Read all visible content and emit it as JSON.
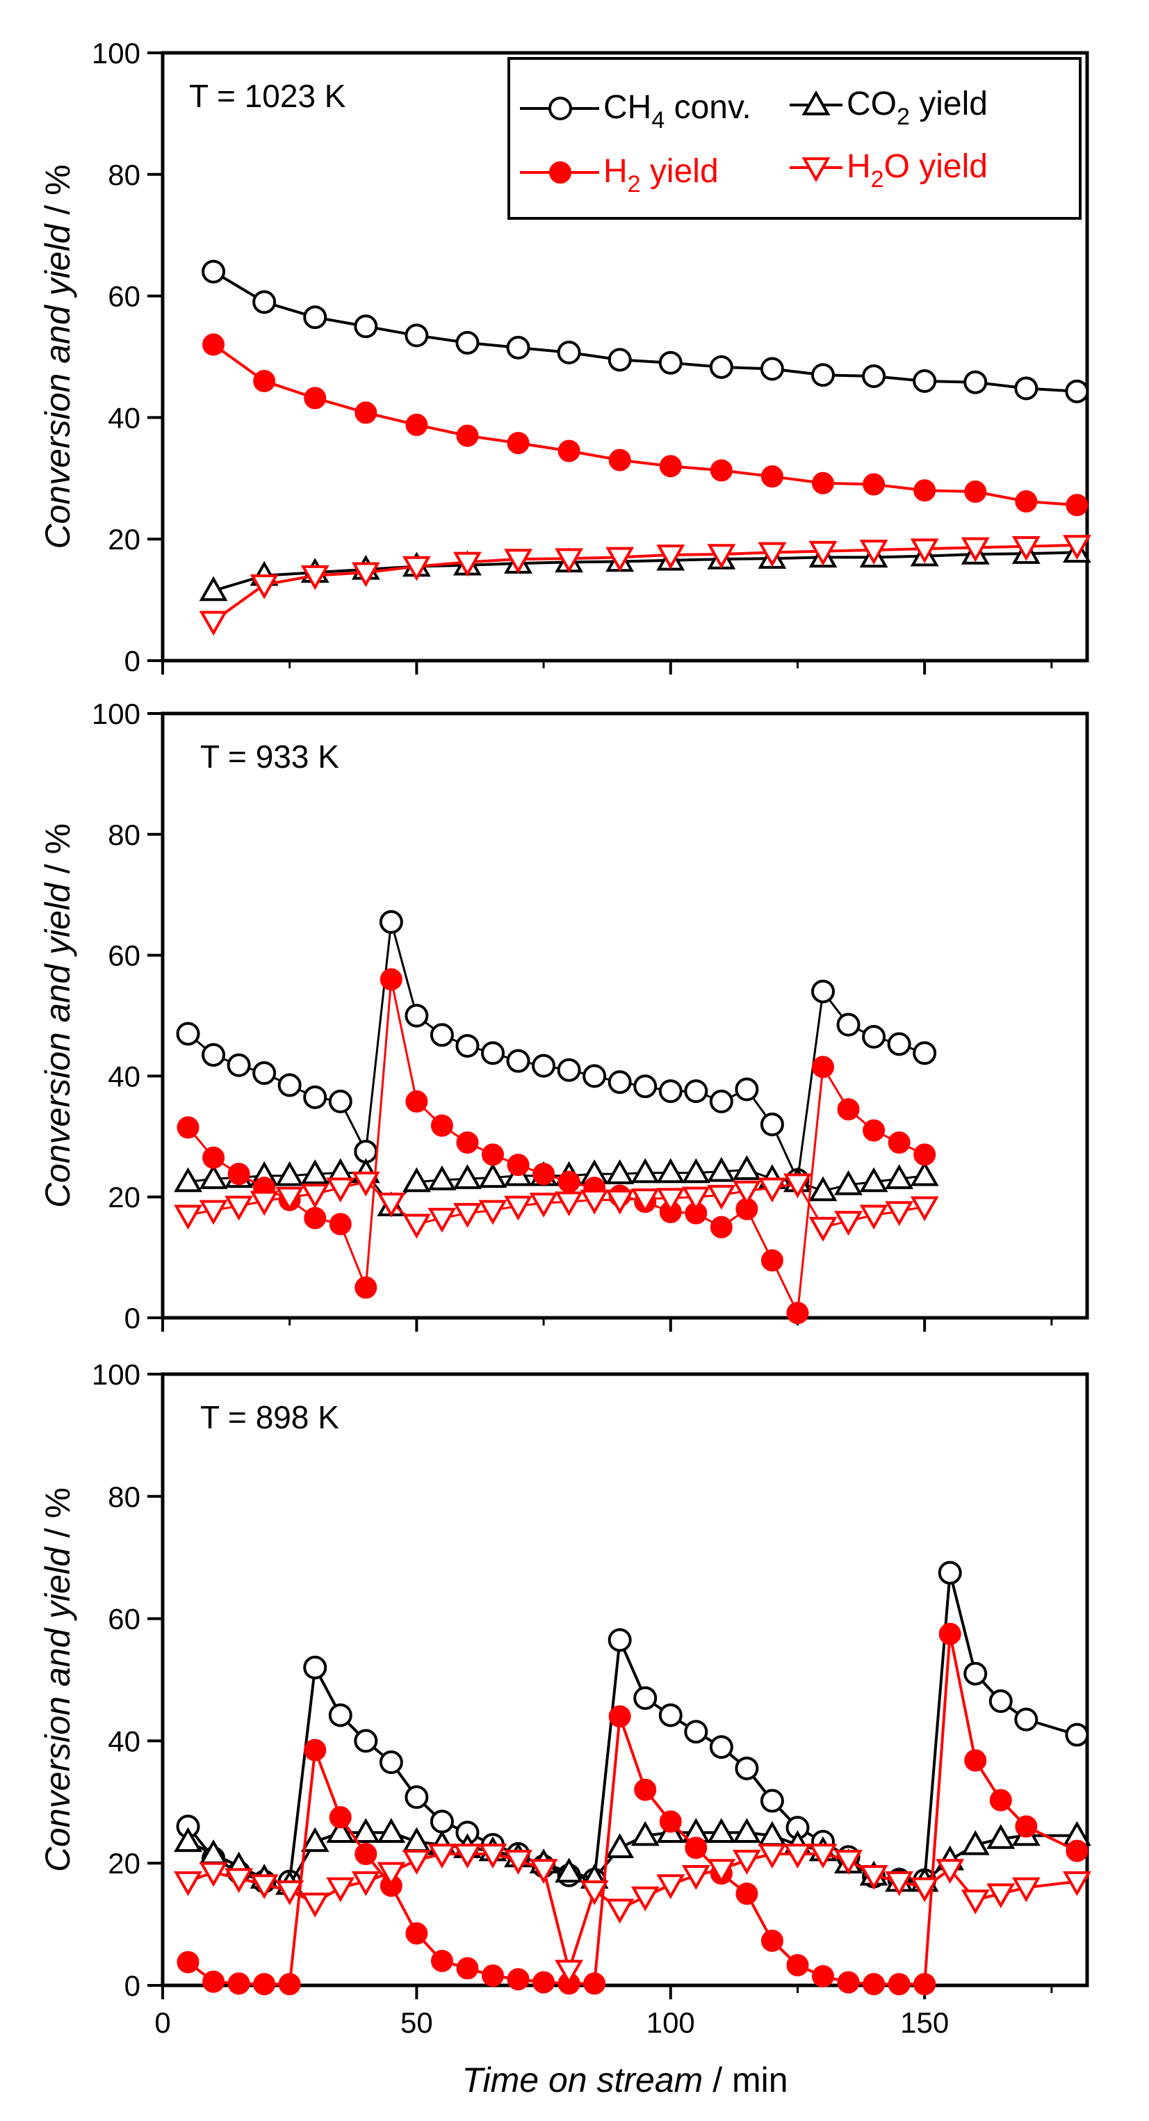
{
  "figure": {
    "ylabel": "Conversion and yield",
    "ylabel_unit": "%",
    "xlabel": "Time on stream",
    "xlabel_unit": "min",
    "x_ticks": [
      "0",
      "50",
      "100",
      "150"
    ],
    "y_ticks": [
      "0",
      "20",
      "40",
      "60",
      "80",
      "100"
    ],
    "legend": [
      {
        "name": "CH4 conv.",
        "base": "CH",
        "sub": "4",
        "rest": " conv.",
        "marker": "open-circle",
        "color": "#000000"
      },
      {
        "name": "CO2 yield",
        "base": "CO",
        "sub": "2",
        "rest": " yield",
        "marker": "open-triangle-up",
        "color": "#000000"
      },
      {
        "name": "H2 yield",
        "base": "H",
        "sub": "2",
        "rest": " yield",
        "marker": "filled-circle",
        "color": "#ff0000"
      },
      {
        "name": "H2O yield",
        "base": "H",
        "sub": "2",
        "rest": "O yield",
        "marker": "open-triangle-down",
        "color": "#ff0000"
      }
    ]
  },
  "chart_data": [
    {
      "type": "line",
      "title": "T = 1023 K",
      "xlabel": "Time on stream / min",
      "ylabel": "Conversion and yield / %",
      "xlim": [
        0,
        182
      ],
      "ylim": [
        0,
        100
      ],
      "x": [
        10,
        20,
        30,
        40,
        50,
        60,
        70,
        80,
        90,
        100,
        110,
        120,
        130,
        140,
        150,
        160,
        170,
        180
      ],
      "series": [
        {
          "name": "CH4 conv.",
          "color": "#000000",
          "marker": "open-circle",
          "values": [
            64.0,
            59.0,
            56.5,
            55.0,
            53.5,
            52.3,
            51.5,
            50.7,
            49.5,
            49.0,
            48.3,
            48.0,
            47.0,
            46.8,
            46.0,
            45.8,
            44.8,
            44.3
          ]
        },
        {
          "name": "CO2 yield",
          "color": "#000000",
          "marker": "open-triangle-up",
          "values": [
            11.5,
            14.0,
            14.5,
            15.0,
            15.5,
            15.7,
            16.0,
            16.2,
            16.3,
            16.5,
            16.7,
            16.8,
            17.0,
            17.0,
            17.2,
            17.5,
            17.6,
            17.8
          ]
        },
        {
          "name": "H2 yield",
          "color": "#ff0000",
          "marker": "filled-circle",
          "values": [
            52.0,
            46.0,
            43.2,
            40.8,
            38.8,
            37.0,
            35.8,
            34.5,
            33.0,
            32.0,
            31.3,
            30.3,
            29.2,
            29.0,
            28.0,
            27.8,
            26.2,
            25.6
          ]
        },
        {
          "name": "H2O yield",
          "color": "#ff0000",
          "marker": "open-triangle-down",
          "values": [
            6.5,
            12.5,
            14.0,
            14.5,
            15.5,
            16.2,
            16.7,
            16.8,
            17.0,
            17.4,
            17.5,
            17.8,
            18.0,
            18.2,
            18.4,
            18.6,
            18.8,
            19.0
          ]
        }
      ]
    },
    {
      "type": "line",
      "title": "T = 933 K",
      "xlabel": "Time on stream / min",
      "ylabel": "Conversion and yield / %",
      "xlim": [
        0,
        182
      ],
      "ylim": [
        0,
        100
      ],
      "x": [
        5,
        10,
        15,
        20,
        25,
        30,
        35,
        40,
        45,
        50,
        55,
        60,
        65,
        70,
        75,
        80,
        85,
        90,
        95,
        100,
        105,
        110,
        115,
        120,
        125,
        130,
        135,
        140,
        145,
        150
      ],
      "series": [
        {
          "name": "CH4 conv.",
          "color": "#000000",
          "marker": "open-circle",
          "values": [
            47.0,
            43.5,
            41.8,
            40.5,
            38.5,
            36.5,
            35.8,
            27.5,
            65.5,
            50.0,
            46.8,
            45.0,
            43.8,
            42.5,
            41.7,
            41.0,
            40.0,
            39.0,
            38.3,
            37.5,
            37.5,
            35.8,
            37.8,
            32.0,
            22.8,
            54.0,
            48.5,
            46.5,
            45.3,
            43.8
          ]
        },
        {
          "name": "CO2 yield",
          "color": "#000000",
          "marker": "open-triangle-up",
          "values": [
            22.5,
            23.0,
            23.2,
            23.5,
            23.5,
            23.8,
            24.0,
            24.0,
            18.5,
            22.5,
            22.8,
            23.0,
            23.2,
            23.5,
            23.5,
            23.5,
            23.8,
            23.8,
            24.0,
            24.0,
            24.0,
            24.2,
            24.5,
            23.0,
            22.5,
            21.0,
            22.0,
            22.5,
            23.0,
            23.5
          ]
        },
        {
          "name": "H2 yield",
          "color": "#ff0000",
          "marker": "filled-circle",
          "values": [
            31.5,
            26.5,
            23.8,
            21.5,
            19.5,
            16.5,
            15.5,
            5.0,
            56.0,
            35.8,
            31.8,
            29.0,
            27.0,
            25.3,
            23.8,
            22.5,
            21.5,
            20.2,
            19.2,
            17.5,
            17.3,
            15.0,
            18.0,
            9.5,
            0.8,
            41.5,
            34.5,
            31.0,
            29.0,
            27.0
          ]
        },
        {
          "name": "H2O yield",
          "color": "#ff0000",
          "marker": "open-triangle-down",
          "values": [
            17.0,
            17.8,
            18.5,
            19.3,
            20.0,
            20.5,
            21.5,
            22.5,
            19.0,
            15.5,
            16.5,
            17.3,
            17.8,
            18.5,
            19.0,
            19.2,
            19.5,
            19.5,
            19.7,
            19.8,
            20.0,
            20.3,
            21.0,
            21.5,
            22.2,
            15.0,
            16.0,
            17.0,
            17.6,
            18.4
          ]
        }
      ]
    },
    {
      "type": "line",
      "title": "T = 898 K",
      "xlabel": "Time on stream / min",
      "ylabel": "Conversion and yield / %",
      "xlim": [
        0,
        182
      ],
      "ylim": [
        0,
        100
      ],
      "x": [
        5,
        10,
        15,
        20,
        25,
        30,
        35,
        40,
        45,
        50,
        55,
        60,
        65,
        70,
        75,
        80,
        85,
        90,
        95,
        100,
        105,
        110,
        115,
        120,
        125,
        130,
        135,
        140,
        145,
        150,
        155,
        160,
        165,
        170,
        180
      ],
      "series": [
        {
          "name": "CH4 conv.",
          "color": "#000000",
          "marker": "open-circle",
          "values": [
            26.0,
            20.8,
            18.5,
            17.0,
            17.0,
            52.0,
            44.2,
            40.0,
            36.5,
            30.8,
            26.8,
            25.0,
            23.0,
            21.5,
            19.5,
            18.0,
            17.3,
            56.5,
            47.0,
            44.2,
            41.5,
            39.0,
            35.5,
            30.2,
            25.8,
            23.5,
            21.0,
            17.8,
            17.3,
            17.2,
            67.5,
            51.0,
            46.5,
            43.5,
            41.0
          ]
        },
        {
          "name": "CO2 yield",
          "color": "#000000",
          "marker": "open-triangle-up",
          "values": [
            23.5,
            21.5,
            19.5,
            17.5,
            16.5,
            23.5,
            25.0,
            25.0,
            25.0,
            23.5,
            23.0,
            22.5,
            22.0,
            21.0,
            20.0,
            18.5,
            17.5,
            22.5,
            24.5,
            25.0,
            25.0,
            25.0,
            25.0,
            24.5,
            23.0,
            22.0,
            20.0,
            18.0,
            17.0,
            17.0,
            20.5,
            23.0,
            24.0,
            24.5,
            24.5
          ]
        },
        {
          "name": "H2 yield",
          "color": "#ff0000",
          "marker": "filled-circle",
          "values": [
            3.8,
            0.6,
            0.3,
            0.2,
            0.2,
            38.5,
            27.5,
            21.5,
            16.3,
            8.5,
            4.0,
            2.8,
            1.6,
            1.0,
            0.5,
            0.3,
            0.3,
            44.0,
            32.0,
            26.8,
            22.5,
            18.3,
            15.0,
            7.3,
            3.3,
            1.5,
            0.5,
            0.2,
            0.2,
            0.2,
            57.5,
            36.8,
            30.3,
            26.0,
            22.0
          ]
        },
        {
          "name": "H2O yield",
          "color": "#ff0000",
          "marker": "open-triangle-down",
          "values": [
            17.0,
            18.5,
            17.5,
            16.5,
            15.5,
            13.5,
            16.0,
            17.0,
            18.5,
            20.5,
            21.5,
            21.5,
            21.5,
            20.5,
            19.0,
            2.5,
            15.5,
            12.5,
            14.5,
            16.5,
            18.0,
            19.0,
            20.5,
            21.5,
            21.5,
            21.5,
            20.5,
            18.0,
            17.0,
            16.0,
            19.0,
            14.0,
            15.0,
            16.0,
            17.0
          ]
        }
      ]
    }
  ]
}
